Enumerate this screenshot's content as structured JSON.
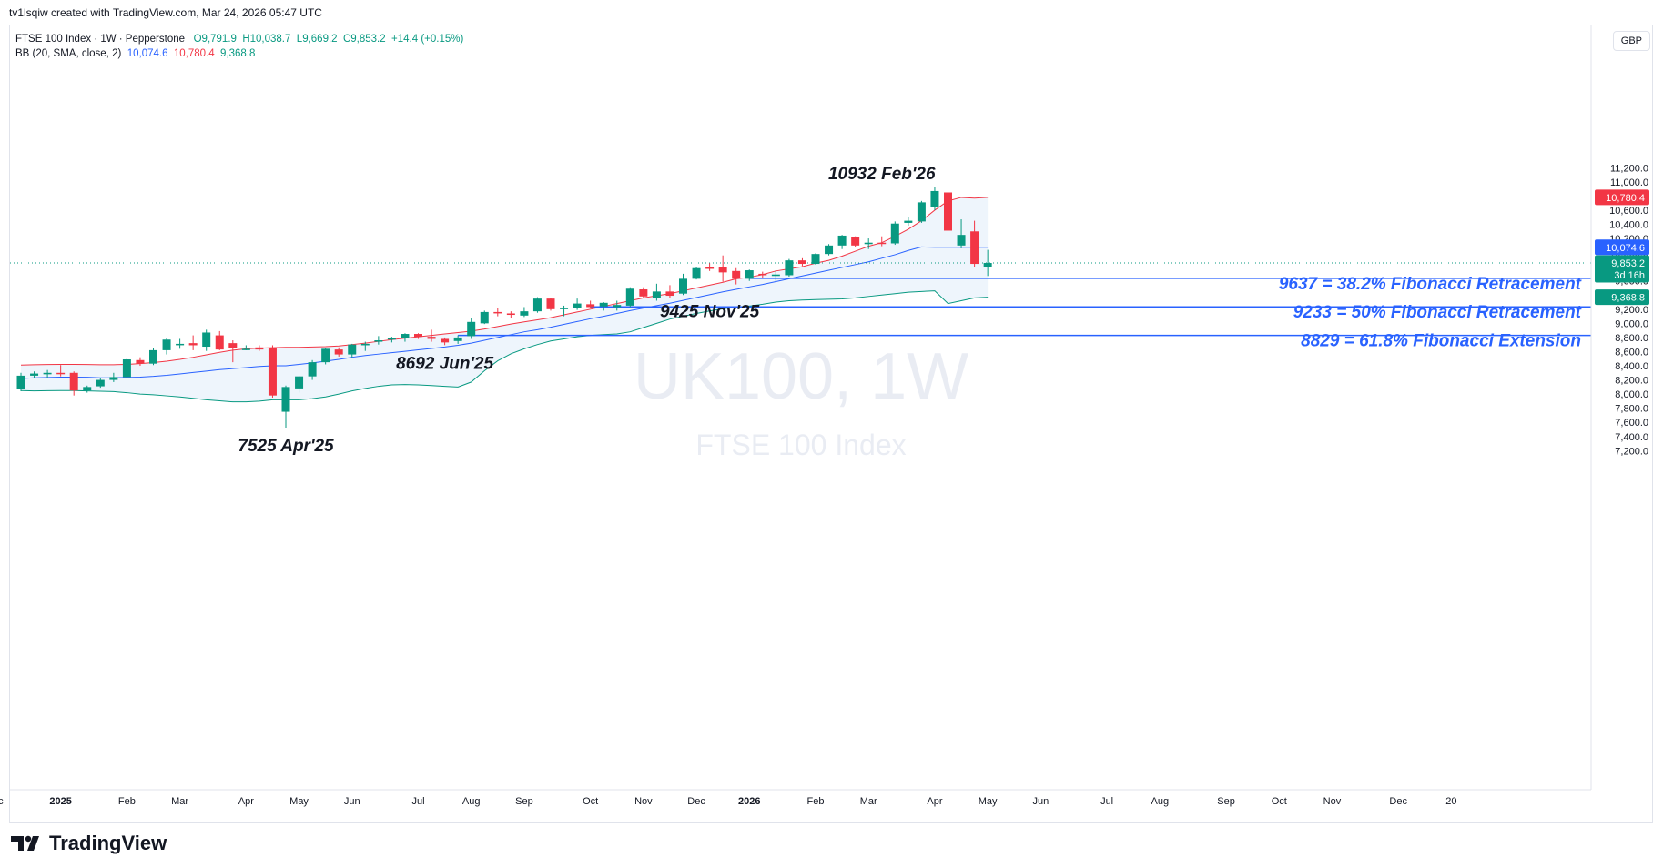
{
  "header": {
    "created_by": "tv1lsqiw created with TradingView.com, Mar 24, 2026 05:47 UTC",
    "symbol": "FTSE 100 Index · 1W · Pepperstone",
    "ohlc": {
      "o": "O9,791.9",
      "h": "H10,038.7",
      "l": "L9,669.2",
      "c": "C9,853.2",
      "chg": "+14.4 (+0.15%)"
    },
    "bb_label": "BB (20, SMA, close, 2)",
    "bb_values": {
      "basis": "10,074.6",
      "upper": "10,780.4",
      "lower": "9,368.8"
    },
    "currency": "GBP"
  },
  "brand": {
    "name": "TradingView"
  },
  "watermark": {
    "ticker": "UK100, 1W",
    "name": "FTSE 100 Index"
  },
  "colors": {
    "up": "#089981",
    "down": "#f23645",
    "basis": "#2962ff",
    "upper": "#f23645",
    "lower": "#089981",
    "fib": "#2962ff",
    "band_fill": "#eef5fc"
  },
  "chart_data": {
    "type": "candlestick",
    "ylim": [
      7100,
      11300
    ],
    "y_ticks": [
      11200,
      11000,
      10800,
      10600,
      10400,
      10200,
      10000,
      9800,
      9600,
      9400,
      9200,
      9000,
      8800,
      8600,
      8400,
      8200,
      8000,
      7800,
      7600,
      7400,
      7200
    ],
    "x_labels": [
      {
        "text": "Dec",
        "i": -2
      },
      {
        "text": "2025",
        "i": 3,
        "bold": true
      },
      {
        "text": "Feb",
        "i": 8
      },
      {
        "text": "Mar",
        "i": 12
      },
      {
        "text": "Apr",
        "i": 17
      },
      {
        "text": "May",
        "i": 21
      },
      {
        "text": "Jun",
        "i": 25
      },
      {
        "text": "Jul",
        "i": 30
      },
      {
        "text": "Aug",
        "i": 34
      },
      {
        "text": "Sep",
        "i": 38
      },
      {
        "text": "Oct",
        "i": 43
      },
      {
        "text": "Nov",
        "i": 47
      },
      {
        "text": "Dec",
        "i": 51
      },
      {
        "text": "2026",
        "i": 55,
        "bold": true
      },
      {
        "text": "Feb",
        "i": 60
      },
      {
        "text": "Mar",
        "i": 64
      },
      {
        "text": "Apr",
        "i": 69
      },
      {
        "text": "May",
        "i": 73
      },
      {
        "text": "Jun",
        "i": 77
      },
      {
        "text": "Jul",
        "i": 82
      },
      {
        "text": "Aug",
        "i": 86
      },
      {
        "text": "Sep",
        "i": 91
      },
      {
        "text": "Oct",
        "i": 95
      },
      {
        "text": "Nov",
        "i": 99
      },
      {
        "text": "Dec",
        "i": 104
      },
      {
        "text": "20",
        "i": 108
      }
    ],
    "candles": [
      {
        "o": 8070,
        "h": 8300,
        "l": 8040,
        "c": 8260
      },
      {
        "o": 8260,
        "h": 8320,
        "l": 8230,
        "c": 8290
      },
      {
        "o": 8280,
        "h": 8340,
        "l": 8220,
        "c": 8300
      },
      {
        "o": 8300,
        "h": 8410,
        "l": 8250,
        "c": 8290
      },
      {
        "o": 8300,
        "h": 8320,
        "l": 7980,
        "c": 8050
      },
      {
        "o": 8050,
        "h": 8120,
        "l": 8020,
        "c": 8100
      },
      {
        "o": 8110,
        "h": 8230,
        "l": 8090,
        "c": 8200
      },
      {
        "o": 8200,
        "h": 8300,
        "l": 8170,
        "c": 8240
      },
      {
        "o": 8240,
        "h": 8510,
        "l": 8220,
        "c": 8490
      },
      {
        "o": 8480,
        "h": 8520,
        "l": 8400,
        "c": 8430
      },
      {
        "o": 8430,
        "h": 8650,
        "l": 8410,
        "c": 8620
      },
      {
        "o": 8620,
        "h": 8790,
        "l": 8560,
        "c": 8770
      },
      {
        "o": 8700,
        "h": 8780,
        "l": 8640,
        "c": 8710
      },
      {
        "o": 8720,
        "h": 8830,
        "l": 8620,
        "c": 8690
      },
      {
        "o": 8670,
        "h": 8910,
        "l": 8610,
        "c": 8870
      },
      {
        "o": 8830,
        "h": 8890,
        "l": 8620,
        "c": 8630
      },
      {
        "o": 8720,
        "h": 8760,
        "l": 8450,
        "c": 8650
      },
      {
        "o": 8630,
        "h": 8690,
        "l": 8620,
        "c": 8640
      },
      {
        "o": 8660,
        "h": 8690,
        "l": 8610,
        "c": 8630
      },
      {
        "o": 8650,
        "h": 8690,
        "l": 7950,
        "c": 7980
      },
      {
        "o": 7750,
        "h": 8120,
        "l": 7525,
        "c": 8100
      },
      {
        "o": 8080,
        "h": 8260,
        "l": 8020,
        "c": 8250
      },
      {
        "o": 8250,
        "h": 8480,
        "l": 8200,
        "c": 8450
      },
      {
        "o": 8450,
        "h": 8650,
        "l": 8420,
        "c": 8640
      },
      {
        "o": 8630,
        "h": 8660,
        "l": 8530,
        "c": 8560
      },
      {
        "o": 8560,
        "h": 8710,
        "l": 8520,
        "c": 8700
      },
      {
        "o": 8690,
        "h": 8740,
        "l": 8610,
        "c": 8710
      },
      {
        "o": 8740,
        "h": 8820,
        "l": 8700,
        "c": 8760
      },
      {
        "o": 8770,
        "h": 8810,
        "l": 8730,
        "c": 8790
      },
      {
        "o": 8790,
        "h": 8860,
        "l": 8740,
        "c": 8850
      },
      {
        "o": 8850,
        "h": 8860,
        "l": 8780,
        "c": 8810
      },
      {
        "o": 8810,
        "h": 8910,
        "l": 8740,
        "c": 8780
      },
      {
        "o": 8780,
        "h": 8800,
        "l": 8692,
        "c": 8730
      },
      {
        "o": 8750,
        "h": 8830,
        "l": 8710,
        "c": 8800
      },
      {
        "o": 8820,
        "h": 9070,
        "l": 8780,
        "c": 9020
      },
      {
        "o": 9000,
        "h": 9180,
        "l": 8990,
        "c": 9160
      },
      {
        "o": 9160,
        "h": 9220,
        "l": 9100,
        "c": 9150
      },
      {
        "o": 9140,
        "h": 9170,
        "l": 9080,
        "c": 9120
      },
      {
        "o": 9110,
        "h": 9230,
        "l": 9090,
        "c": 9170
      },
      {
        "o": 9170,
        "h": 9370,
        "l": 9150,
        "c": 9350
      },
      {
        "o": 9350,
        "h": 9360,
        "l": 9180,
        "c": 9200
      },
      {
        "o": 9200,
        "h": 9250,
        "l": 9100,
        "c": 9220
      },
      {
        "o": 9220,
        "h": 9350,
        "l": 9190,
        "c": 9280
      },
      {
        "o": 9270,
        "h": 9320,
        "l": 9210,
        "c": 9230
      },
      {
        "o": 9240,
        "h": 9300,
        "l": 9180,
        "c": 9290
      },
      {
        "o": 9230,
        "h": 9320,
        "l": 9180,
        "c": 9260
      },
      {
        "o": 9250,
        "h": 9510,
        "l": 9230,
        "c": 9490
      },
      {
        "o": 9480,
        "h": 9510,
        "l": 9360,
        "c": 9380
      },
      {
        "o": 9360,
        "h": 9560,
        "l": 9320,
        "c": 9450
      },
      {
        "o": 9450,
        "h": 9540,
        "l": 9360,
        "c": 9390
      },
      {
        "o": 9420,
        "h": 9700,
        "l": 9400,
        "c": 9630
      },
      {
        "o": 9630,
        "h": 9790,
        "l": 9620,
        "c": 9780
      },
      {
        "o": 9800,
        "h": 9850,
        "l": 9740,
        "c": 9770
      },
      {
        "o": 9800,
        "h": 9960,
        "l": 9590,
        "c": 9720
      },
      {
        "o": 9740,
        "h": 9780,
        "l": 9550,
        "c": 9630
      },
      {
        "o": 9630,
        "h": 9760,
        "l": 9600,
        "c": 9750
      },
      {
        "o": 9700,
        "h": 9730,
        "l": 9640,
        "c": 9680
      },
      {
        "o": 9670,
        "h": 9750,
        "l": 9600,
        "c": 9690
      },
      {
        "o": 9680,
        "h": 9910,
        "l": 9660,
        "c": 9890
      },
      {
        "o": 9890,
        "h": 9920,
        "l": 9810,
        "c": 9840
      },
      {
        "o": 9840,
        "h": 9990,
        "l": 9830,
        "c": 9980
      },
      {
        "o": 9980,
        "h": 10120,
        "l": 9960,
        "c": 10100
      },
      {
        "o": 10100,
        "h": 10250,
        "l": 10050,
        "c": 10240
      },
      {
        "o": 10220,
        "h": 10230,
        "l": 10080,
        "c": 10100
      },
      {
        "o": 10120,
        "h": 10200,
        "l": 10050,
        "c": 10140
      },
      {
        "o": 10140,
        "h": 10230,
        "l": 10090,
        "c": 10130
      },
      {
        "o": 10130,
        "h": 10440,
        "l": 10110,
        "c": 10410
      },
      {
        "o": 10420,
        "h": 10500,
        "l": 10380,
        "c": 10450
      },
      {
        "o": 10440,
        "h": 10730,
        "l": 10420,
        "c": 10710
      },
      {
        "o": 10650,
        "h": 10932,
        "l": 10600,
        "c": 10870
      },
      {
        "o": 10850,
        "h": 10860,
        "l": 10230,
        "c": 10310
      },
      {
        "o": 10100,
        "h": 10470,
        "l": 10060,
        "c": 10250
      },
      {
        "o": 10300,
        "h": 10450,
        "l": 9790,
        "c": 9840
      },
      {
        "o": 9791.9,
        "h": 10038.7,
        "l": 9669.2,
        "c": 9853.2
      }
    ],
    "bb_upper": [
      8410,
      8415,
      8418,
      8420,
      8420,
      8418,
      8415,
      8415,
      8420,
      8430,
      8445,
      8465,
      8490,
      8520,
      8555,
      8590,
      8620,
      8640,
      8650,
      8655,
      8660,
      8660,
      8665,
      8670,
      8680,
      8700,
      8720,
      8745,
      8770,
      8790,
      8810,
      8830,
      8850,
      8870,
      8890,
      8920,
      8955,
      8990,
      9020,
      9050,
      9080,
      9120,
      9160,
      9200,
      9240,
      9280,
      9320,
      9360,
      9390,
      9420,
      9460,
      9500,
      9540,
      9580,
      9630,
      9650,
      9690,
      9740,
      9770,
      9800,
      9850,
      9890,
      9950,
      10020,
      10090,
      10140,
      10230,
      10330,
      10450,
      10600,
      10730,
      10780,
      10770,
      10780.4
    ],
    "bb_basis": [
      8220,
      8230,
      8235,
      8240,
      8240,
      8238,
      8230,
      8230,
      8235,
      8240,
      8250,
      8265,
      8285,
      8305,
      8325,
      8345,
      8360,
      8375,
      8390,
      8400,
      8400,
      8420,
      8440,
      8465,
      8490,
      8520,
      8545,
      8565,
      8585,
      8605,
      8625,
      8645,
      8665,
      8690,
      8720,
      8760,
      8800,
      8840,
      8880,
      8910,
      8945,
      8985,
      9025,
      9065,
      9100,
      9140,
      9180,
      9215,
      9250,
      9285,
      9325,
      9365,
      9405,
      9445,
      9480,
      9515,
      9550,
      9590,
      9630,
      9670,
      9710,
      9750,
      9790,
      9830,
      9870,
      9920,
      9970,
      10030,
      10080,
      10074.6,
      10074.6,
      10074.6,
      10074.6,
      10074.6
    ],
    "bb_lower": [
      8050,
      8045,
      8048,
      8050,
      8050,
      8045,
      8040,
      8035,
      8020,
      8000,
      7990,
      7975,
      7960,
      7940,
      7920,
      7905,
      7890,
      7890,
      7900,
      7920,
      7920,
      7920,
      7935,
      7960,
      8000,
      8045,
      8080,
      8110,
      8130,
      8135,
      8130,
      8120,
      8110,
      8100,
      8170,
      8330,
      8470,
      8570,
      8640,
      8700,
      8750,
      8780,
      8810,
      8830,
      8840,
      8850,
      8880,
      8940,
      9000,
      9060,
      9100,
      9140,
      9175,
      9205,
      9230,
      9245,
      9270,
      9300,
      9320,
      9330,
      9335,
      9340,
      9345,
      9360,
      9380,
      9400,
      9420,
      9440,
      9450,
      9460,
      9280,
      9320,
      9360,
      9368.8
    ],
    "last_price": "9,853.2",
    "countdown": "3d 16h",
    "fib_levels": [
      {
        "value": 9637,
        "start_i": 55,
        "label": "9637 = 38.2% Fibonacci Retracement"
      },
      {
        "value": 9233,
        "start_i": 43,
        "label": "9233 = 50% Fibonacci Retracement"
      },
      {
        "value": 8829,
        "start_i": 33,
        "label": "8829 = 61.8% Fibonacci Extension"
      }
    ],
    "annotations": [
      {
        "text": "10932 Feb'26",
        "i": 65,
        "value": 10932,
        "pos": "above"
      },
      {
        "text": "9425 Nov'25",
        "i": 52,
        "value": 9425,
        "pos": "below"
      },
      {
        "text": "8692 Jun'25",
        "i": 32,
        "value": 8692,
        "pos": "below"
      },
      {
        "text": "7525 Apr'25",
        "i": 20,
        "value": 7525,
        "pos": "below"
      }
    ]
  }
}
